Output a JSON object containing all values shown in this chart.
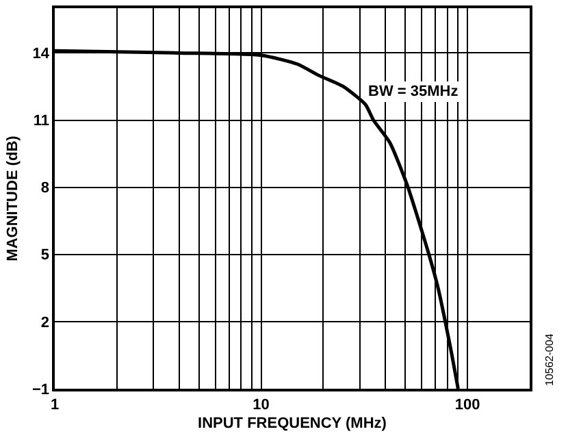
{
  "chart_data": {
    "type": "line",
    "xlabel": "INPUT FREQUENCY (MHz)",
    "ylabel": "MAGNITUDE (dB)",
    "annotations": [
      "BW = 35MHz",
      "10562-004"
    ],
    "x": [
      1,
      2,
      4,
      10,
      15,
      19,
      25,
      32,
      35,
      42,
      51,
      58,
      65,
      72,
      78,
      84,
      90
    ],
    "series": [
      {
        "color": "#000000",
        "values": [
          14.1,
          14.05,
          14.0,
          13.9,
          13.5,
          13.0,
          12.5,
          11.7,
          11.0,
          10.0,
          8.1,
          6.5,
          5.0,
          3.5,
          2.0,
          0.5,
          -1.0
        ]
      }
    ],
    "log": "x",
    "xlim": [
      1,
      200
    ],
    "ylim": [
      -1,
      16
    ],
    "xticks": [
      1,
      {
        "value": 2,
        "label": null
      },
      {
        "value": 3,
        "label": null
      },
      {
        "value": 4,
        "label": null
      },
      {
        "value": 5,
        "label": null
      },
      {
        "value": 6,
        "label": null
      },
      {
        "value": 7,
        "label": null
      },
      {
        "value": 8,
        "label": null
      },
      {
        "value": 9,
        "label": null
      },
      10,
      {
        "value": 20,
        "label": null
      },
      {
        "value": 30,
        "label": null
      },
      {
        "value": 40,
        "label": null
      },
      {
        "value": 50,
        "label": null
      },
      {
        "value": 60,
        "label": null
      },
      {
        "value": 70,
        "label": null
      },
      {
        "value": 80,
        "label": null
      },
      {
        "value": 90,
        "label": null
      },
      100
    ],
    "yticks": [
      {
        "value": -1,
        "label": "−1"
      },
      2,
      5,
      8,
      11,
      14
    ],
    "grid": true,
    "legend": false,
    "marker": "none",
    "line_style": "solid"
  }
}
